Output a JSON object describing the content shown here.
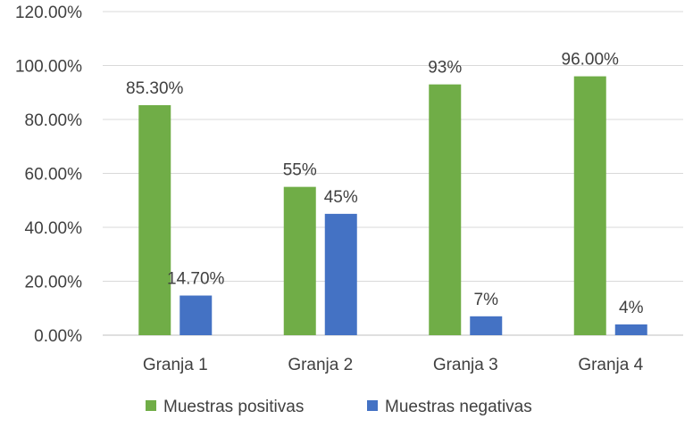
{
  "chart_data": {
    "type": "bar",
    "title": "",
    "xlabel": "",
    "ylabel": "",
    "categories": [
      "Granja 1",
      "Granja 2",
      "Granja 3",
      "Granja 4"
    ],
    "series": [
      {
        "name": "Muestras positivas",
        "color": "#70AD47",
        "values": [
          85.3,
          55,
          93,
          96
        ],
        "labels": [
          "85.30%",
          "55%",
          "93%",
          "96.00%"
        ]
      },
      {
        "name": "Muestras negativas",
        "color": "#4472C4",
        "values": [
          14.7,
          45,
          7,
          4
        ],
        "labels": [
          "14.70%",
          "45%",
          "7%",
          "4%"
        ]
      }
    ],
    "ylim": [
      0,
      120
    ],
    "yticks": [
      0,
      20,
      40,
      60,
      80,
      100,
      120
    ],
    "ytick_labels": [
      "0.00%",
      "20.00%",
      "40.00%",
      "60.00%",
      "80.00%",
      "100.00%",
      "120.00%"
    ],
    "grid": true,
    "legend_position": "bottom"
  }
}
